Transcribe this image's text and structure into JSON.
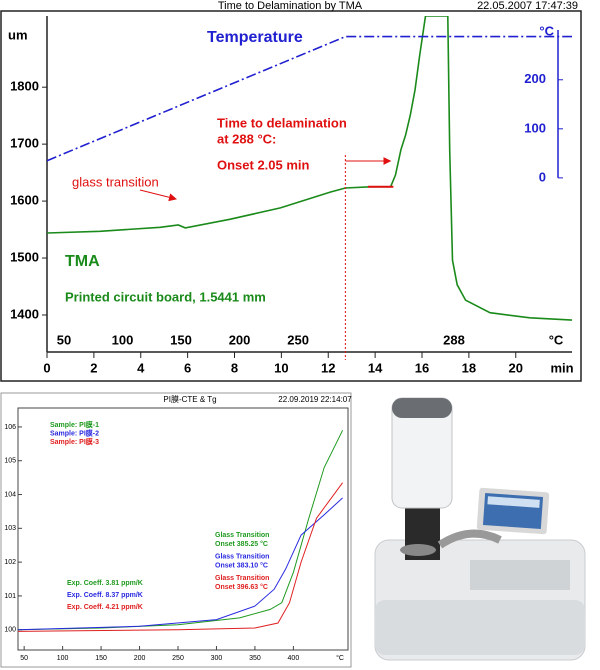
{
  "chart_data": [
    {
      "type": "line",
      "title": "Time to Delamination by TMA",
      "timestamp": "22.05.2007 17:47:39",
      "xlabel": "min",
      "ylabel": "um",
      "y2label": "°C",
      "xlim": [
        0,
        22.4
      ],
      "xticks": [
        0,
        2,
        4,
        6,
        8,
        10,
        12,
        14,
        16,
        18,
        20
      ],
      "ylim": [
        1335,
        1925
      ],
      "yticks": [
        1400,
        1500,
        1600,
        1700,
        1800
      ],
      "y2lim": [
        -355,
        330
      ],
      "y2ticks": [
        0,
        100,
        200
      ],
      "temperature_scale": {
        "xlim": [
          35.5,
          484
        ],
        "ticks": [
          50,
          100,
          150,
          200,
          250
        ],
        "hold": 288,
        "unit": "°C"
      },
      "series": [
        {
          "name": "TMA",
          "color": "#1a8a1a",
          "x": [
            0,
            2.26,
            4.83,
            5.6,
            5.9,
            7.8,
            9.96,
            12.1,
            12.73,
            13.8,
            14.66,
            14.87,
            15.1,
            15.3,
            15.5,
            15.7,
            15.9,
            16.15,
            17.1,
            17.18,
            17.3,
            17.5,
            17.86,
            18.9,
            20.6,
            22.4
          ],
          "values": [
            1544,
            1547,
            1554,
            1558,
            1553,
            1568,
            1588,
            1616,
            1623,
            1625,
            1625,
            1646,
            1690,
            1716,
            1751,
            1795,
            1856,
            1925,
            1925,
            1690,
            1496,
            1453,
            1426,
            1404,
            1395,
            1391
          ]
        },
        {
          "name": "Temperature",
          "color": "#2020d0",
          "axis": "y2",
          "x": [
            0,
            12.73,
            22.4
          ],
          "values": [
            35,
            288,
            288
          ]
        }
      ],
      "onset_marker_x": 12.73,
      "onset_segment": {
        "color": "#e01010",
        "x": [
          13.7,
          14.78
        ],
        "values": [
          1625,
          1625
        ]
      },
      "annotations": {
        "glass_transition": "glass transition",
        "delamination": [
          "Time to delamination",
          "at 288 °C:",
          "Onset   2.05 min"
        ],
        "sample": "Printed circuit board, 1.5441 mm"
      }
    },
    {
      "type": "line",
      "title": "PI膜-CTE & Tg",
      "timestamp": "22.09.2019 22:14:07",
      "xlabel": "°C",
      "xlim": [
        42,
        471
      ],
      "xticks": [
        50,
        100,
        150,
        200,
        250,
        300,
        350,
        400
      ],
      "ylim": [
        99.4,
        106.56
      ],
      "yticks": [
        100,
        101,
        102,
        103,
        104,
        105,
        106
      ],
      "series": [
        {
          "name": "Sample: PI膜-1",
          "color": "#1f9a1f",
          "coeff_label": "Exp. Coeff.   3.81 ppm/K",
          "tg_label": "Glass Transition",
          "onset_label": "Onset   385.25 °C",
          "x": [
            42,
            150,
            250,
            330,
            370,
            385,
            400,
            420,
            440,
            464
          ],
          "values": [
            100.0,
            100.05,
            100.15,
            100.35,
            100.6,
            100.8,
            101.7,
            103.3,
            104.8,
            105.9
          ]
        },
        {
          "name": "Sample: PI膜-2",
          "color": "#2a2ae0",
          "coeff_label": "Exp. Coeff.   8.37 ppm/K",
          "tg_label": "Glass Transition",
          "onset_label": "Onset   383.10 °C",
          "x": [
            42,
            200,
            300,
            350,
            375,
            390,
            410,
            440,
            464
          ],
          "values": [
            100.0,
            100.1,
            100.3,
            100.7,
            101.2,
            101.8,
            102.8,
            103.4,
            103.9
          ]
        },
        {
          "name": "Sample: PI膜-3",
          "color": "#e02020",
          "coeff_label": "Exp. Coeff.   4.21 ppm/K",
          "tg_label": "Glass Transition",
          "onset_label": "Onset   396.63 °C",
          "x": [
            42,
            250,
            350,
            380,
            395,
            410,
            430,
            464
          ],
          "values": [
            99.95,
            100.0,
            100.05,
            100.2,
            100.8,
            102.0,
            103.3,
            104.35
          ]
        }
      ]
    }
  ]
}
